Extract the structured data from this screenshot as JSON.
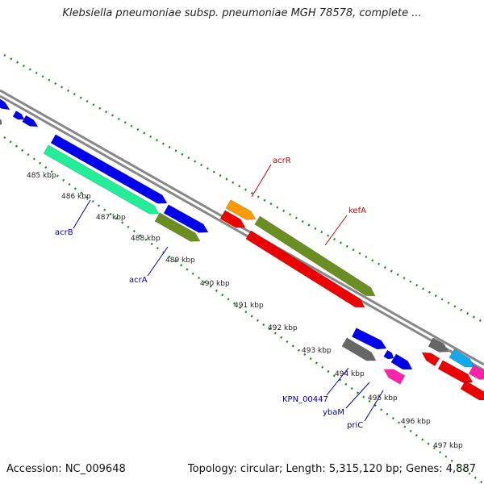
{
  "title": "Klebsiella pneumoniae subsp. pneumoniae MGH 78578, complete ...",
  "footer": {
    "accession": "Accession: NC_009648",
    "summary": "Topology: circular; Length: 5,315,120 bp; Genes: 4,887"
  },
  "ticks": [
    {
      "label": "485 kbp"
    },
    {
      "label": "486 kbp"
    },
    {
      "label": "487 kbp"
    },
    {
      "label": "488 kbp"
    },
    {
      "label": "489 kbp"
    },
    {
      "label": "490 kbp"
    },
    {
      "label": "491 kbp"
    },
    {
      "label": "492 kbp"
    },
    {
      "label": "493 kbp"
    },
    {
      "label": "494 kbp"
    },
    {
      "label": "495 kbp"
    },
    {
      "label": "496 kbp"
    },
    {
      "label": "497 kbp"
    }
  ],
  "genes": {
    "acrR": "acrR",
    "kefA": "kefA",
    "acrB": "acrB",
    "acrA": "acrA",
    "KPN_00447": "KPN_00447",
    "ybaM": "ybaM",
    "priC": "priC"
  },
  "colors": {
    "blue": "#0000ee",
    "teal": "#22ee99",
    "olive": "#6b8e23",
    "red": "#ee0000",
    "orange": "#ff9900",
    "gray": "#666666",
    "pink": "#ff22aa",
    "cyan": "#11aaee",
    "dots": "#1a8a1a",
    "backbone": "#888888"
  }
}
